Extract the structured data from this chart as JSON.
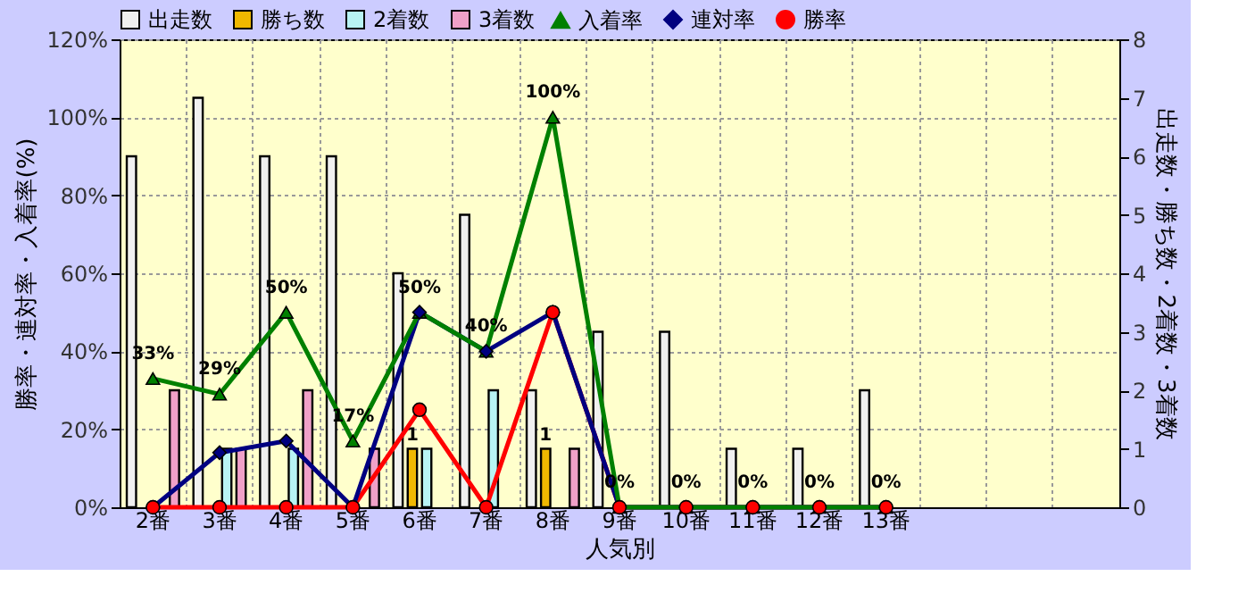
{
  "chart_data": {
    "type": "bar",
    "xlabel": "人気別",
    "ylabel": "勝率・連対率・入着率(%)",
    "y2label": "出走数・勝ち数・2着数・3着数",
    "categories": [
      "2番",
      "3番",
      "4番",
      "5番",
      "6番",
      "7番",
      "8番",
      "9番",
      "10番",
      "11番",
      "12番",
      "13番",
      null,
      null,
      null
    ],
    "ylim": [
      0,
      120
    ],
    "yticks": [
      {
        "value": 0,
        "label": "0%"
      },
      {
        "value": 20,
        "label": "20%"
      },
      {
        "value": 40,
        "label": "40%"
      },
      {
        "value": 60,
        "label": "60%"
      },
      {
        "value": 80,
        "label": "80%"
      },
      {
        "value": 100,
        "label": "100%"
      },
      {
        "value": 120,
        "label": "120%"
      }
    ],
    "y2lim": [
      0,
      8
    ],
    "y2ticks": [
      0,
      1,
      2,
      3,
      4,
      5,
      6,
      7,
      8
    ],
    "grid": true,
    "legend": "top",
    "series": [
      {
        "name": "出走数",
        "axis": "y2",
        "color": "#f0f0f0",
        "values": [
          6,
          7,
          6,
          6,
          4,
          5,
          2,
          3,
          3,
          1,
          1,
          2,
          null,
          null,
          null
        ]
      },
      {
        "name": "勝ち数",
        "axis": "y2",
        "color": "#f0b800",
        "values": [
          0,
          0,
          0,
          0,
          1,
          0,
          1,
          0,
          0,
          0,
          0,
          0,
          null,
          null,
          null
        ],
        "value_labels": [
          null,
          null,
          null,
          null,
          "1",
          null,
          "1",
          null,
          null,
          null,
          null,
          null,
          null,
          null,
          null
        ]
      },
      {
        "name": "2着数",
        "axis": "y2",
        "color": "#b8f4f4",
        "values": [
          0,
          1,
          1,
          0,
          1,
          2,
          0,
          0,
          0,
          0,
          0,
          0,
          null,
          null,
          null
        ]
      },
      {
        "name": "3着数",
        "axis": "y2",
        "color": "#f0a0c8",
        "values": [
          2,
          1,
          2,
          1,
          0,
          0,
          1,
          0,
          0,
          0,
          0,
          0,
          null,
          null,
          null
        ]
      },
      {
        "name": "入着率",
        "type": "line",
        "axis": "y",
        "color": "#008000",
        "marker": "triangle",
        "values": [
          33,
          29,
          50,
          17,
          50,
          40,
          100,
          0,
          0,
          0,
          0,
          0,
          null,
          null,
          null
        ],
        "value_labels": [
          "33%",
          "29%",
          "50%",
          "17%",
          "50%",
          "40%",
          "100%",
          "0%",
          "0%",
          "0%",
          "0%",
          "0%",
          null,
          null,
          null
        ]
      },
      {
        "name": "連対率",
        "type": "line",
        "axis": "y",
        "color": "#000080",
        "marker": "diamond",
        "values": [
          0,
          14,
          17,
          0,
          50,
          40,
          50,
          0,
          0,
          0,
          0,
          0,
          null,
          null,
          null
        ]
      },
      {
        "name": "勝率",
        "type": "line",
        "axis": "y",
        "color": "#ff0000",
        "marker": "circle",
        "values": [
          0,
          0,
          0,
          0,
          25,
          0,
          50,
          0,
          0,
          0,
          0,
          0,
          null,
          null,
          null
        ]
      }
    ]
  }
}
